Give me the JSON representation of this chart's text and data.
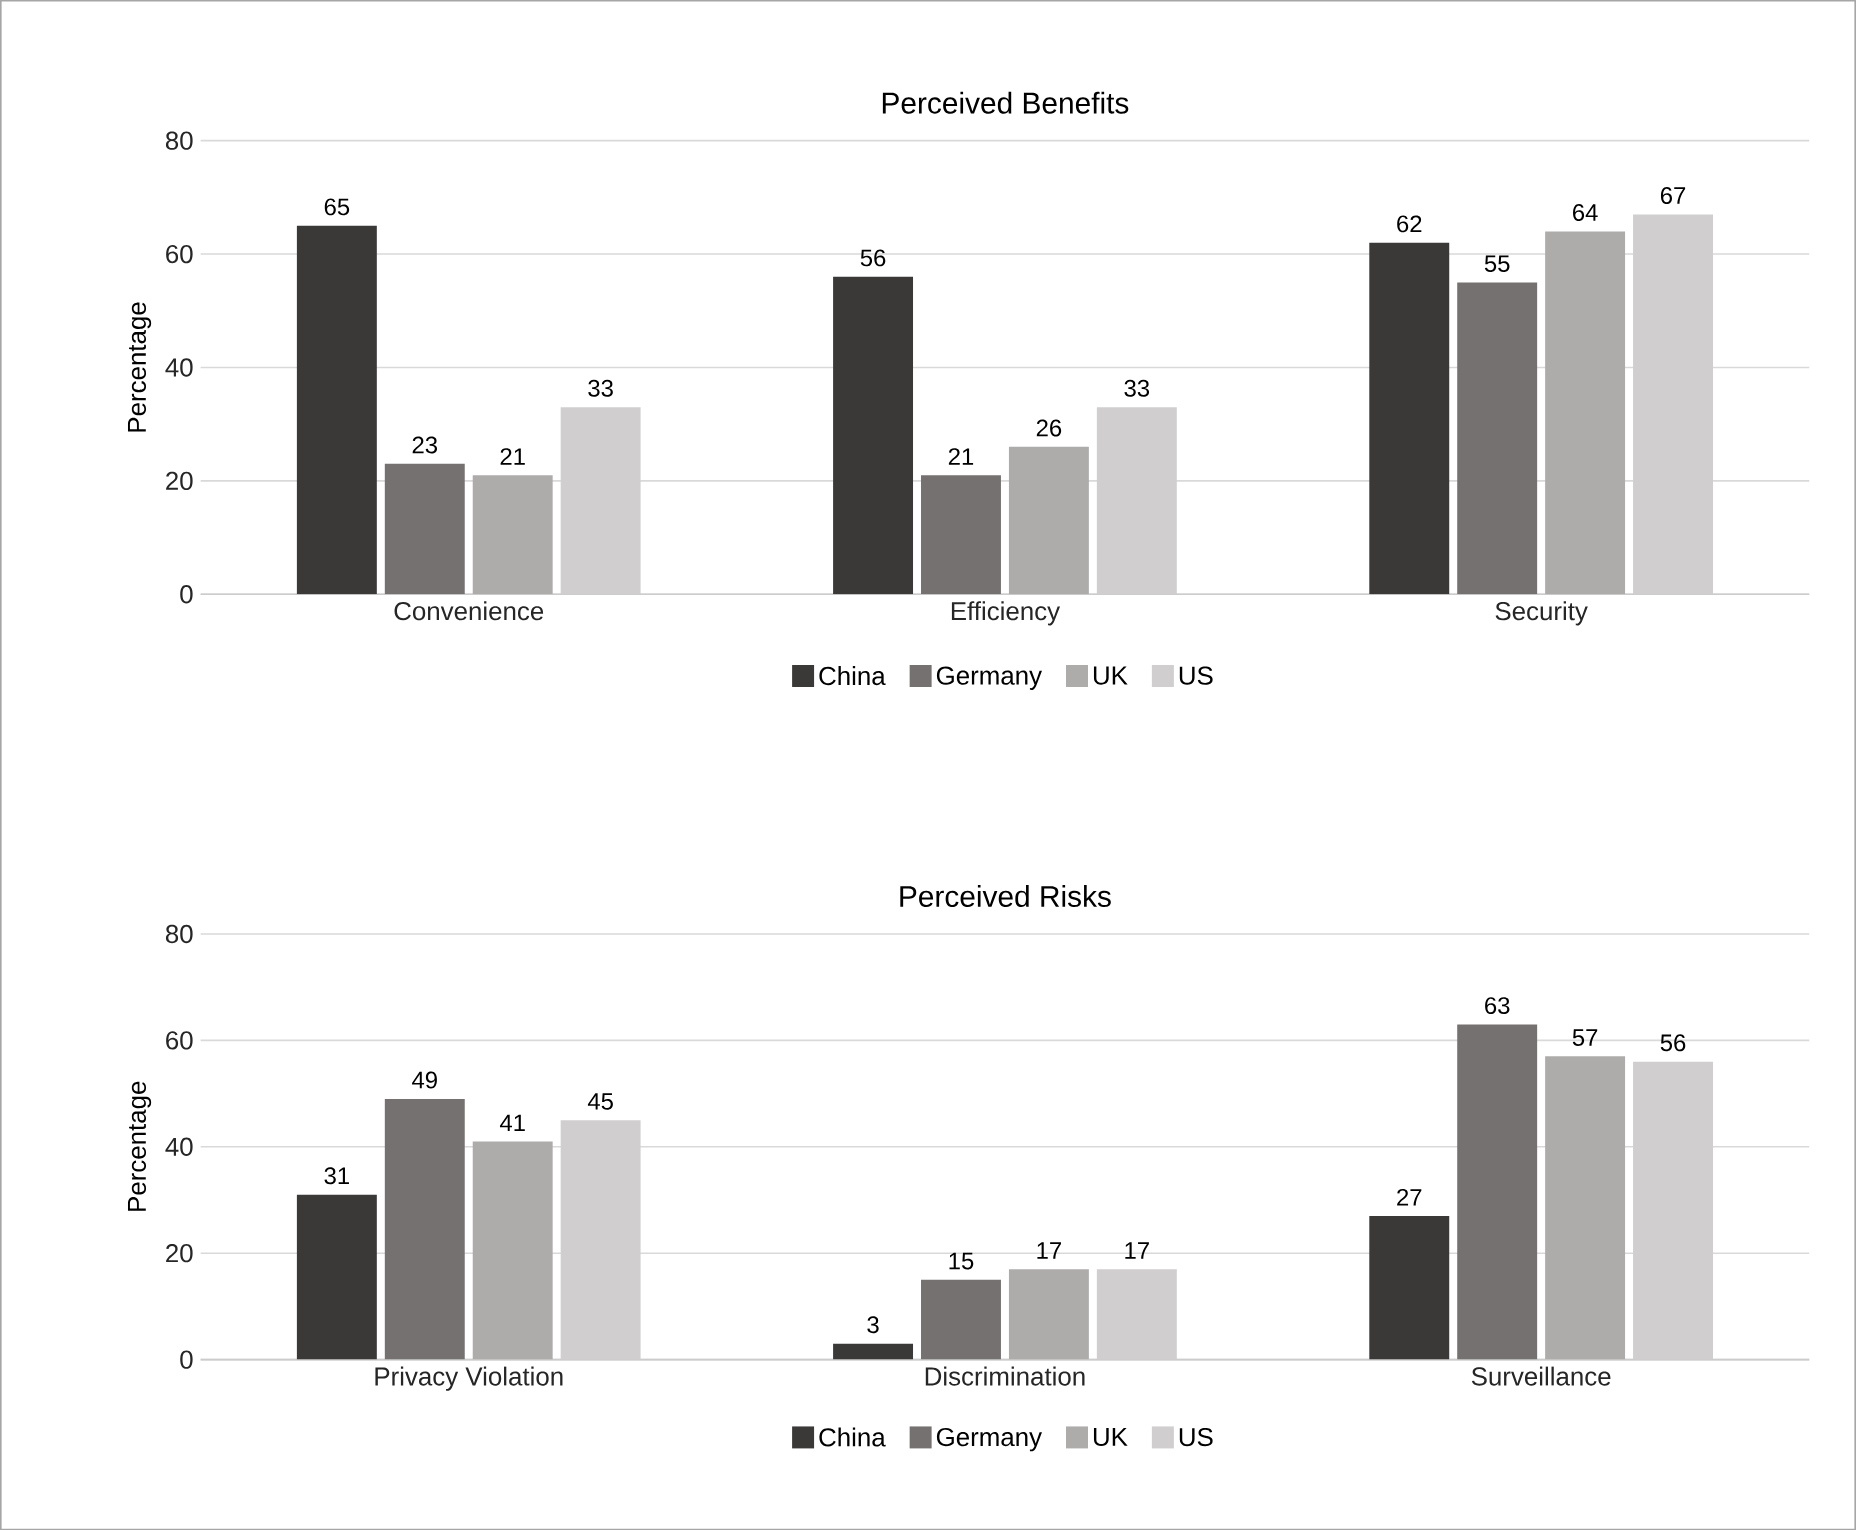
{
  "chart_data": [
    {
      "type": "bar",
      "title": "Perceived Benefits",
      "ylabel": "Percentage",
      "categories": [
        "Convenience",
        "Efficiency",
        "Security"
      ],
      "series": [
        {
          "name": "China",
          "color": "#3b3838",
          "values": [
            65,
            56,
            62
          ]
        },
        {
          "name": "Germany",
          "color": "#767171",
          "values": [
            23,
            21,
            55
          ]
        },
        {
          "name": "UK",
          "color": "#aeabab",
          "values": [
            21,
            26,
            64
          ]
        },
        {
          "name": "US",
          "color": "#d0cece",
          "values": [
            33,
            33,
            67
          ]
        }
      ],
      "ylim": [
        0,
        80
      ],
      "yticks": [
        0,
        20,
        40,
        60,
        80
      ],
      "grid": "y",
      "legend": "bottom",
      "data_labels": true
    },
    {
      "type": "bar",
      "title": "Perceived Risks",
      "ylabel": "Percentage",
      "categories": [
        "Privacy Violation",
        "Discrimination",
        "Surveillance"
      ],
      "series": [
        {
          "name": "China",
          "color": "#3b3838",
          "values": [
            31,
            3,
            27
          ]
        },
        {
          "name": "Germany",
          "color": "#767171",
          "values": [
            49,
            15,
            63
          ]
        },
        {
          "name": "UK",
          "color": "#aeabab",
          "values": [
            41,
            17,
            57
          ]
        },
        {
          "name": "US",
          "color": "#d0cece",
          "values": [
            45,
            17,
            56
          ]
        }
      ],
      "ylim": [
        0,
        80
      ],
      "yticks": [
        0,
        20,
        40,
        60,
        80
      ],
      "grid": "y",
      "legend": "bottom",
      "data_labels": true
    }
  ]
}
